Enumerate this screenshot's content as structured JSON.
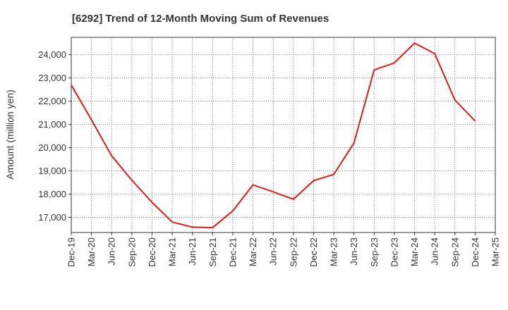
{
  "chart_data": {
    "type": "line",
    "title": "[6292]  Trend of 12-Month Moving Sum of Revenues",
    "xlabel": "",
    "ylabel": "Amount (million yen)",
    "x": [
      "Dec-19",
      "Mar-20",
      "Jun-20",
      "Sep-20",
      "Dec-20",
      "Mar-21",
      "Jun-21",
      "Sep-21",
      "Dec-21",
      "Mar-22",
      "Jun-22",
      "Sep-22",
      "Dec-22",
      "Mar-23",
      "Jun-23",
      "Sep-23",
      "Dec-23",
      "Mar-24",
      "Jun-24",
      "Sep-24",
      "Dec-24",
      "Mar-25"
    ],
    "series": [
      {
        "values": [
          22700,
          21200,
          19650,
          18600,
          17650,
          16800,
          16580,
          16560,
          17280,
          18400,
          18100,
          17780,
          18580,
          18850,
          20200,
          23350,
          23650,
          24500,
          24050,
          22050,
          21150,
          null
        ]
      }
    ],
    "ylim": [
      16350,
      24750
    ],
    "yticks": [
      17000,
      18000,
      19000,
      20000,
      21000,
      22000,
      23000,
      24000
    ],
    "ytick_labels": [
      "17,000",
      "18,000",
      "19,000",
      "20,000",
      "21,000",
      "22,000",
      "23,000",
      "24,000"
    ],
    "grid": true,
    "line_color": "#e31a1c"
  }
}
